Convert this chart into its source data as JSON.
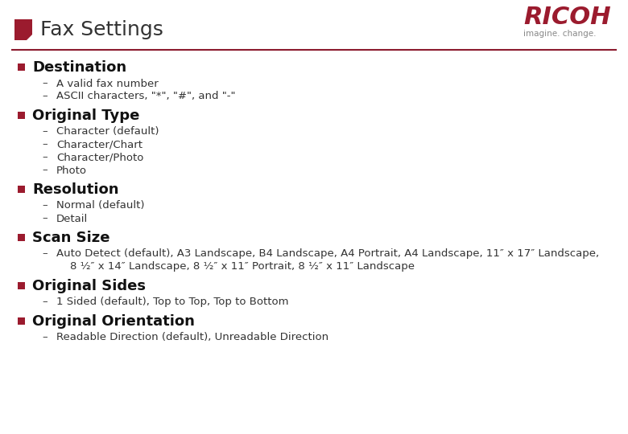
{
  "title": "Fax Settings",
  "title_fontsize": 18,
  "title_color": "#333333",
  "header_line_color": "#8B1A2E",
  "background_color": "#ffffff",
  "ricoh_text": "RICOH",
  "ricoh_sub": "imagine. change.",
  "ricoh_color": "#9B1B2E",
  "ricoh_sub_color": "#888888",
  "bullet_color": "#9B1B2E",
  "sections": [
    {
      "heading": "Destination",
      "items": [
        "A valid fax number",
        "ASCII characters, \"*\", \"#\", and \"-\""
      ]
    },
    {
      "heading": "Original Type",
      "items": [
        "Character (default)",
        "Character/Chart",
        "Character/Photo",
        "Photo"
      ]
    },
    {
      "heading": "Resolution",
      "items": [
        "Normal (default)",
        "Detail"
      ]
    },
    {
      "heading": "Scan Size",
      "items": [
        "Auto Detect (default), A3 Landscape, B4 Landscape, A4 Portrait, A4 Landscape, 11″ x 17″ Landscape, 8 ½″ x 14″ Landscape, 8 ½″ x 11″ Portrait, 8 ½″ x 11″ Landscape"
      ]
    },
    {
      "heading": "Original Sides",
      "items": [
        "1 Sided (default), Top to Top, Top to Bottom"
      ]
    },
    {
      "heading": "Original Orientation",
      "items": [
        "Readable Direction (default), Unreadable Direction"
      ]
    }
  ],
  "heading_fontsize": 13,
  "item_fontsize": 9.5,
  "heading_color": "#111111",
  "item_color": "#333333",
  "dash_color": "#444444",
  "fig_width": 7.8,
  "fig_height": 5.4,
  "dpi": 100
}
